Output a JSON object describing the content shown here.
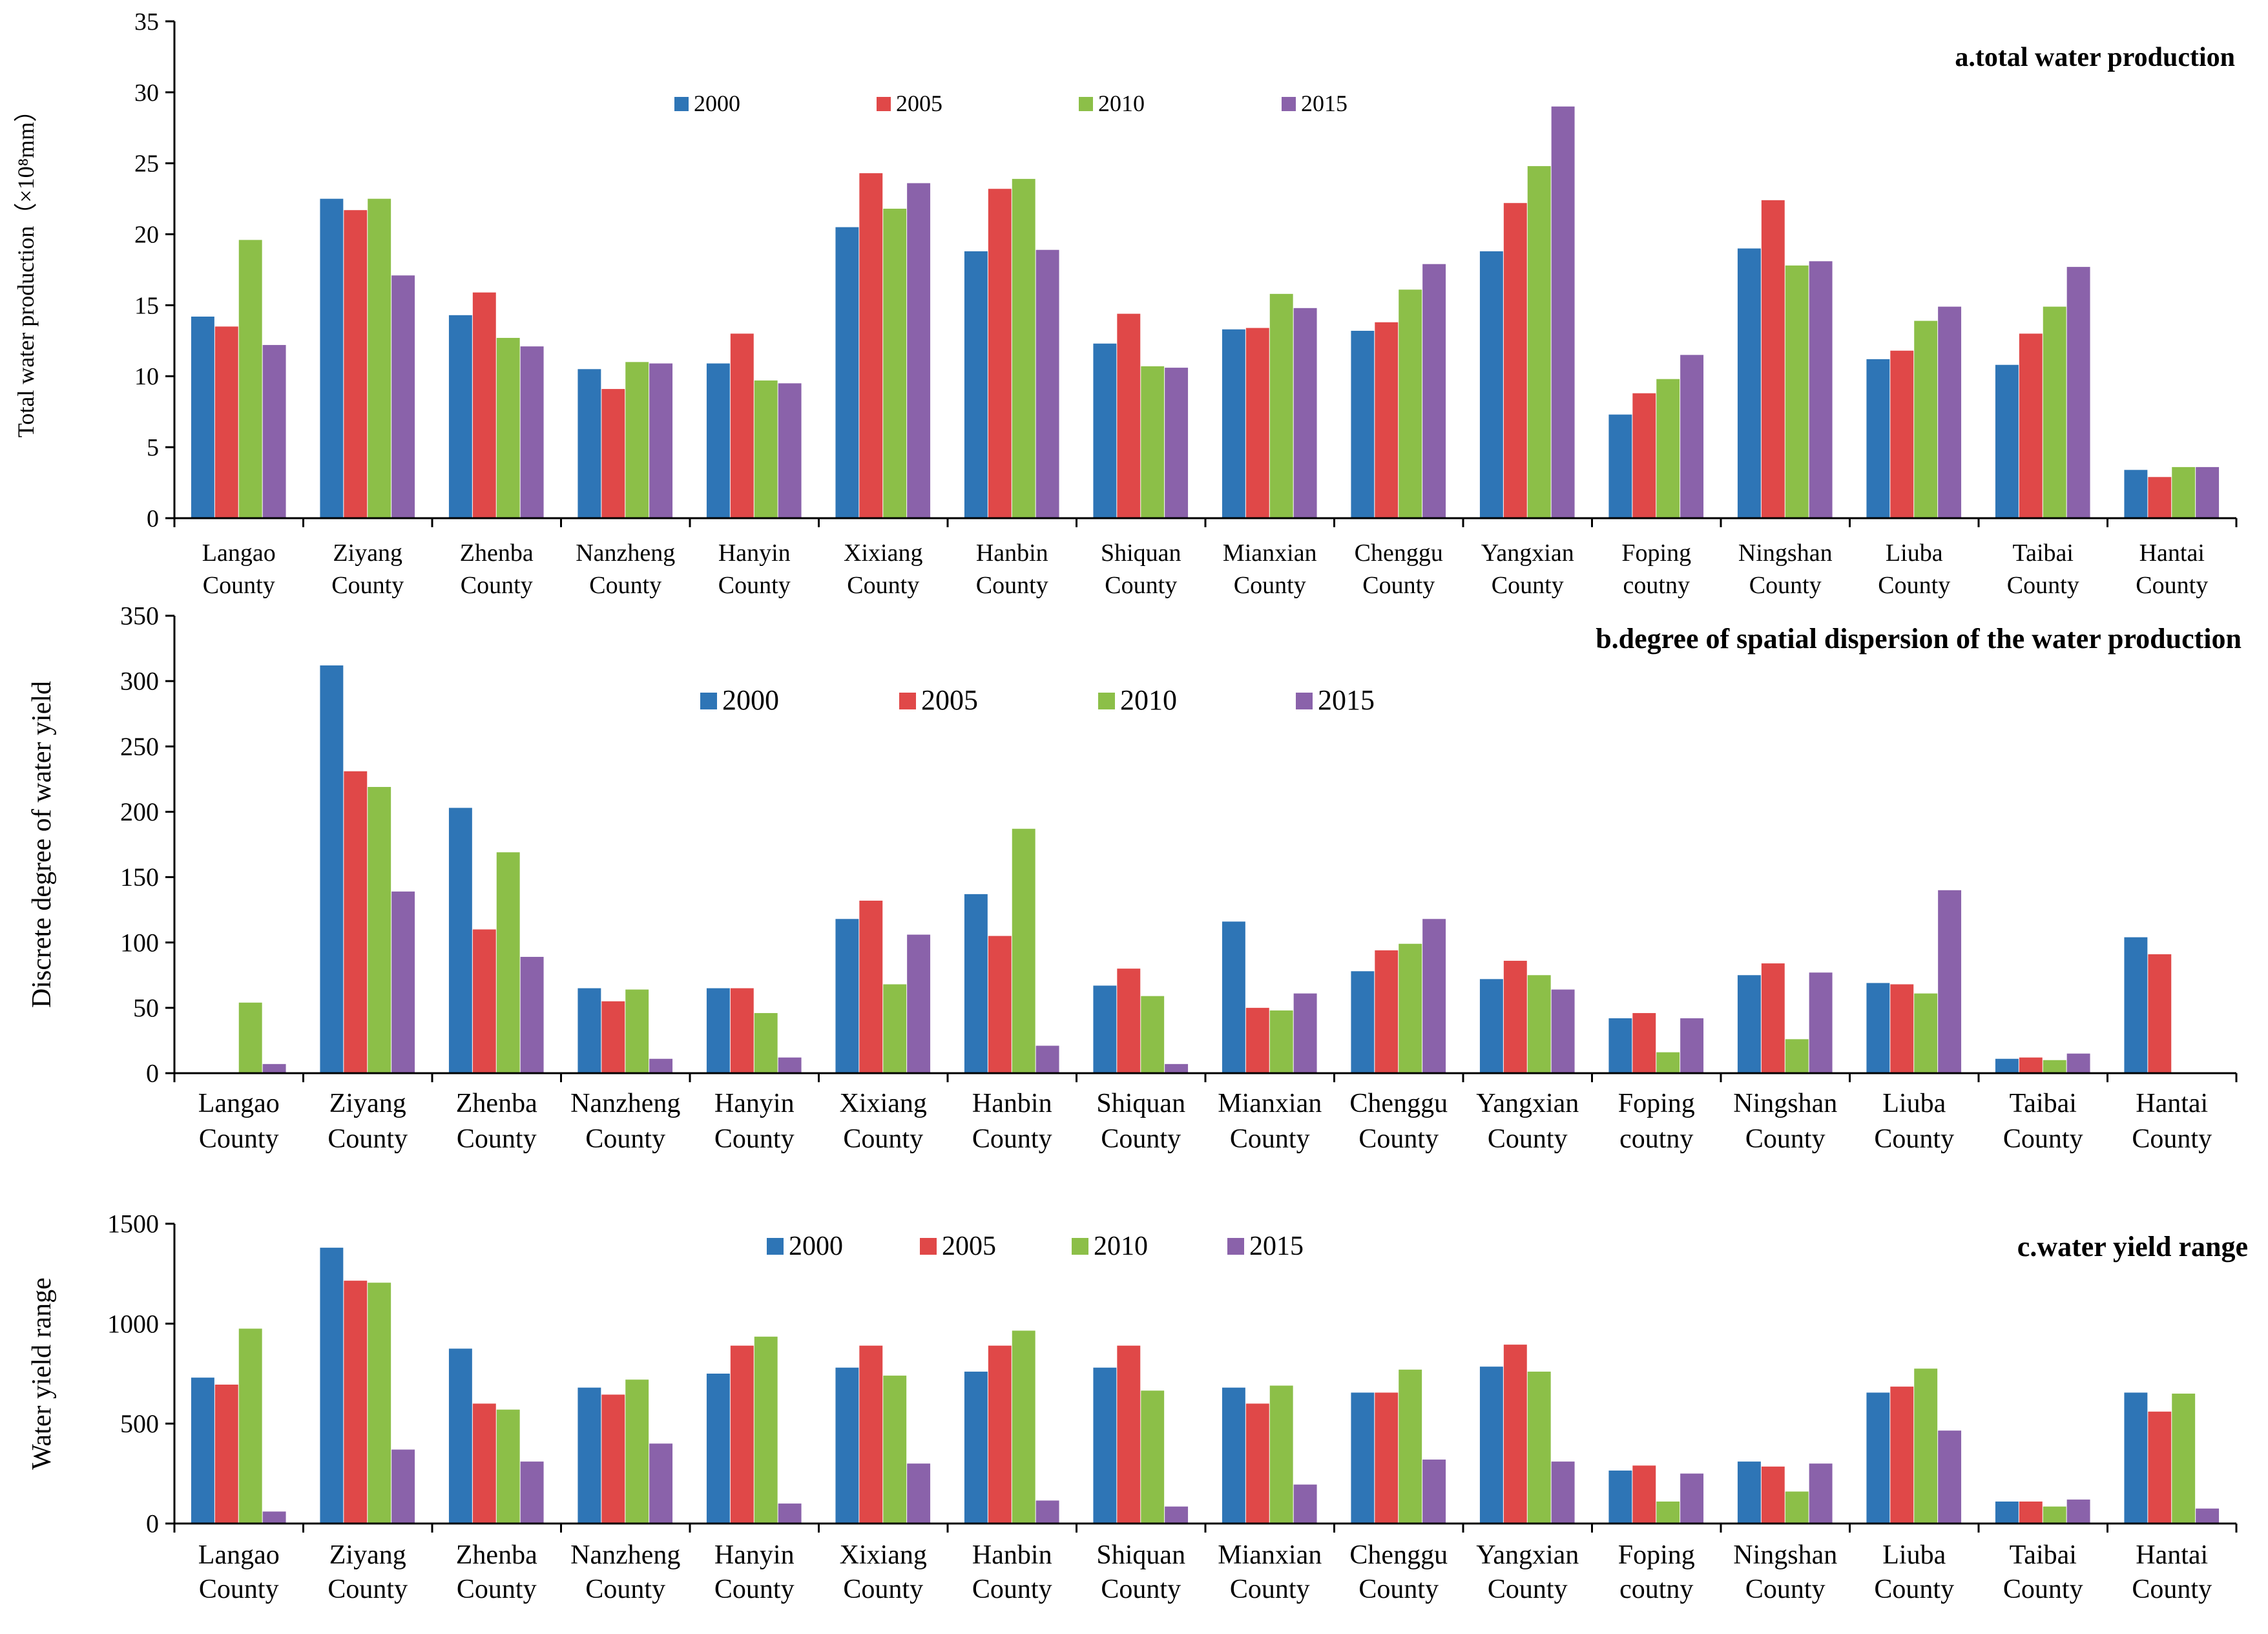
{
  "colors": {
    "2000": "#2e75b6",
    "2005": "#e04848",
    "2010": "#8cbf48",
    "2015": "#8a62aa"
  },
  "chart_data": [
    {
      "type": "bar",
      "title": "a.total water production",
      "ylabel": "Total water production（×10⁸mm）",
      "ylim": [
        0,
        35
      ],
      "yticks": [
        "0",
        "5",
        "10",
        "15",
        "20",
        "25",
        "30",
        "35"
      ],
      "legend": [
        "2000",
        "2005",
        "2010",
        "2015"
      ],
      "categories": [
        [
          "Langao",
          "County"
        ],
        [
          "Ziyang",
          "County"
        ],
        [
          "Zhenba",
          "County"
        ],
        [
          "Nanzheng",
          "County"
        ],
        [
          "Hanyin",
          "County"
        ],
        [
          "Xixiang",
          "County"
        ],
        [
          "Hanbin",
          "County"
        ],
        [
          "Shiquan",
          "County"
        ],
        [
          "Mianxian",
          "County"
        ],
        [
          "Chenggu",
          "County"
        ],
        [
          "Yangxian",
          "County"
        ],
        [
          "Foping",
          "coutny"
        ],
        [
          "Ningshan",
          "County"
        ],
        [
          "Liuba",
          "County"
        ],
        [
          "Taibai",
          "County"
        ],
        [
          "Hantai",
          "County"
        ]
      ],
      "series": [
        {
          "name": "2000",
          "values": [
            14.2,
            22.5,
            14.3,
            10.5,
            10.9,
            20.5,
            18.8,
            12.3,
            13.3,
            13.2,
            18.8,
            7.3,
            19.0,
            11.2,
            10.8,
            3.4
          ]
        },
        {
          "name": "2005",
          "values": [
            13.5,
            21.7,
            15.9,
            9.1,
            13.0,
            24.3,
            23.2,
            14.4,
            13.4,
            13.8,
            22.2,
            8.8,
            22.4,
            11.8,
            13.0,
            2.9
          ]
        },
        {
          "name": "2010",
          "values": [
            19.6,
            22.5,
            12.7,
            11.0,
            9.7,
            21.8,
            23.9,
            10.7,
            15.8,
            16.1,
            24.8,
            9.8,
            17.8,
            13.9,
            14.9,
            3.6
          ]
        },
        {
          "name": "2015",
          "values": [
            12.2,
            17.1,
            12.1,
            10.9,
            9.5,
            23.6,
            18.9,
            10.6,
            14.8,
            17.9,
            29.0,
            11.5,
            18.1,
            14.9,
            17.7,
            3.6
          ]
        }
      ]
    },
    {
      "type": "bar",
      "title": "b.degree of spatial dispersion of the water production",
      "ylabel": "Discrete degree of water yield",
      "ylim": [
        0,
        350
      ],
      "yticks": [
        "0",
        "50",
        "100",
        "150",
        "200",
        "250",
        "300",
        "350"
      ],
      "legend": [
        "2000",
        "2005",
        "2010",
        "2015"
      ],
      "categories": [
        [
          "Langao",
          "County"
        ],
        [
          "Ziyang",
          "County"
        ],
        [
          "Zhenba",
          "County"
        ],
        [
          "Nanzheng",
          "County"
        ],
        [
          "Hanyin",
          "County"
        ],
        [
          "Xixiang",
          "County"
        ],
        [
          "Hanbin",
          "County"
        ],
        [
          "Shiquan",
          "County"
        ],
        [
          "Mianxian",
          "County"
        ],
        [
          "Chenggu",
          "County"
        ],
        [
          "Yangxian",
          "County"
        ],
        [
          "Foping",
          "coutny"
        ],
        [
          "Ningshan",
          "County"
        ],
        [
          "Liuba",
          "County"
        ],
        [
          "Taibai",
          "County"
        ],
        [
          "Hantai",
          "County"
        ]
      ],
      "series": [
        {
          "name": "2000",
          "values": [
            null,
            312,
            203,
            65,
            65,
            118,
            137,
            67,
            116,
            78,
            72,
            42,
            75,
            69,
            11,
            104
          ]
        },
        {
          "name": "2005",
          "values": [
            null,
            231,
            110,
            55,
            65,
            132,
            105,
            80,
            50,
            94,
            86,
            46,
            84,
            68,
            12,
            91
          ]
        },
        {
          "name": "2010",
          "values": [
            54,
            219,
            169,
            64,
            46,
            68,
            187,
            59,
            48,
            99,
            75,
            16,
            26,
            61,
            10,
            null
          ]
        },
        {
          "name": "2015",
          "values": [
            7,
            139,
            89,
            11,
            12,
            106,
            21,
            7,
            61,
            118,
            64,
            42,
            77,
            140,
            15,
            null
          ]
        }
      ]
    },
    {
      "type": "bar",
      "title": "c.water yield range",
      "ylabel": "Water yield range",
      "ylim": [
        0,
        1500
      ],
      "yticks": [
        "0",
        "500",
        "1000",
        "1500"
      ],
      "legend": [
        "2000",
        "2005",
        "2010",
        "2015"
      ],
      "categories": [
        [
          "Langao",
          "County"
        ],
        [
          "Ziyang",
          "County"
        ],
        [
          "Zhenba",
          "County"
        ],
        [
          "Nanzheng",
          "County"
        ],
        [
          "Hanyin",
          "County"
        ],
        [
          "Xixiang",
          "County"
        ],
        [
          "Hanbin",
          "County"
        ],
        [
          "Shiquan",
          "County"
        ],
        [
          "Mianxian",
          "County"
        ],
        [
          "Chenggu",
          "County"
        ],
        [
          "Yangxian",
          "County"
        ],
        [
          "Foping",
          "coutny"
        ],
        [
          "Ningshan",
          "County"
        ],
        [
          "Liuba",
          "County"
        ],
        [
          "Taibai",
          "County"
        ],
        [
          "Hantai",
          "County"
        ]
      ],
      "series": [
        {
          "name": "2000",
          "values": [
            730,
            1380,
            875,
            680,
            750,
            780,
            760,
            780,
            680,
            655,
            785,
            265,
            310,
            655,
            110,
            655
          ]
        },
        {
          "name": "2005",
          "values": [
            695,
            1215,
            600,
            645,
            890,
            890,
            890,
            890,
            600,
            655,
            895,
            290,
            285,
            685,
            110,
            560
          ]
        },
        {
          "name": "2010",
          "values": [
            975,
            1205,
            570,
            720,
            935,
            740,
            965,
            665,
            690,
            770,
            760,
            110,
            160,
            775,
            85,
            650
          ]
        },
        {
          "name": "2015",
          "values": [
            60,
            370,
            310,
            400,
            100,
            300,
            115,
            85,
            195,
            320,
            310,
            250,
            300,
            465,
            120,
            75
          ]
        }
      ]
    }
  ]
}
